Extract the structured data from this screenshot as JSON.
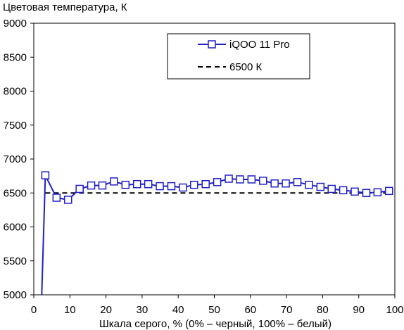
{
  "chart_data": {
    "type": "line",
    "title": "Цветовая температура, К",
    "xlabel": "Шкала серого, % (0% – черный, 100% – белый)",
    "ylabel": "",
    "xlim": [
      0,
      100
    ],
    "ylim": [
      5000,
      9000
    ],
    "x_ticks": [
      0,
      10,
      20,
      30,
      40,
      50,
      60,
      70,
      80,
      90,
      100
    ],
    "y_ticks": [
      5000,
      5500,
      6000,
      6500,
      7000,
      7500,
      8000,
      8500,
      9000
    ],
    "grid": false,
    "legend_position": "top-right",
    "series": [
      {
        "name": "iQOO 11 Pro",
        "color": "#1f1fc8",
        "marker": "square",
        "x": [
          3.2,
          6.3,
          9.5,
          12.7,
          15.9,
          19.0,
          22.2,
          25.4,
          28.6,
          31.7,
          34.9,
          38.1,
          41.3,
          44.4,
          47.6,
          50.8,
          54.0,
          57.1,
          60.3,
          63.5,
          66.7,
          69.8,
          73.0,
          76.2,
          79.4,
          82.5,
          85.7,
          88.9,
          92.1,
          95.2,
          98.4
        ],
        "y": [
          6760,
          6430,
          6400,
          6560,
          6610,
          6610,
          6670,
          6620,
          6630,
          6630,
          6600,
          6600,
          6580,
          6620,
          6630,
          6660,
          6710,
          6700,
          6700,
          6680,
          6640,
          6640,
          6660,
          6620,
          6590,
          6560,
          6540,
          6520,
          6500,
          6510,
          6530
        ],
        "lead_in": {
          "x": [
            2.2,
            3.2
          ],
          "y": [
            5000,
            6760
          ]
        }
      },
      {
        "name": "6500 К",
        "color": "#000000",
        "style": "dashed",
        "x": [
          3.2,
          98.4
        ],
        "y": [
          6500,
          6500
        ]
      }
    ]
  }
}
